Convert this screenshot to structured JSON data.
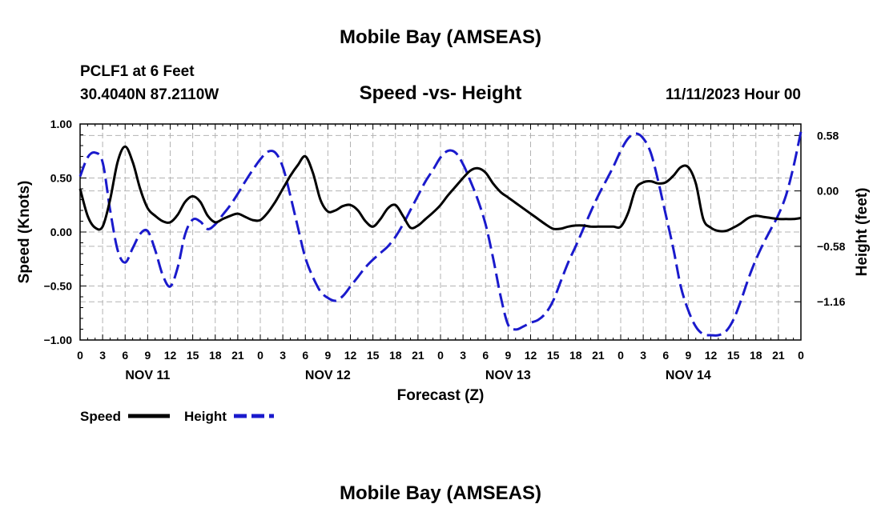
{
  "page": {
    "title": "Mobile Bay (AMSEAS)",
    "footer_title": "Mobile Bay (AMSEAS)"
  },
  "chart_data": {
    "type": "line",
    "title": "Speed -vs- Height",
    "station": "PCLF1 at 6 Feet",
    "location": "30.4040N  87.2110W",
    "date": "11/11/2023 Hour 00",
    "xlabel": "Forecast (Z)",
    "ylabel": "Speed (Knots)",
    "y2label": "Height (feet)",
    "x_hours_range": [
      0,
      96
    ],
    "ylim": [
      -1.0,
      1.0
    ],
    "y2lim": [
      -1.56,
      0.7
    ],
    "y_ticks": [
      "1.00",
      "0.50",
      "0.00",
      "−0.50",
      "−1.00"
    ],
    "y2_ticks": [
      {
        "value": 0.58,
        "label": "0.58"
      },
      {
        "value": 0.0,
        "label": "0.00"
      },
      {
        "value": -0.58,
        "label": "−0.58"
      },
      {
        "value": -1.16,
        "label": "−1.16"
      }
    ],
    "x_tick_labels": [
      "0",
      "3",
      "6",
      "9",
      "12",
      "15",
      "18",
      "21",
      "0",
      "3",
      "6",
      "9",
      "12",
      "15",
      "18",
      "21",
      "0",
      "3",
      "6",
      "9",
      "12",
      "15",
      "18",
      "21",
      "0",
      "3",
      "6",
      "9",
      "12",
      "15",
      "18",
      "21",
      "0"
    ],
    "day_labels": [
      {
        "label": "NOV 11",
        "hour": 9
      },
      {
        "label": "NOV 12",
        "hour": 33
      },
      {
        "label": "NOV 13",
        "hour": 57
      },
      {
        "label": "NOV 14",
        "hour": 81
      }
    ],
    "grid": true,
    "legend": {
      "position": "bottom-left"
    },
    "series": [
      {
        "name": "Speed",
        "axis": "left",
        "color": "#000000",
        "style": "solid",
        "points": [
          [
            0,
            0.4
          ],
          [
            1,
            0.15
          ],
          [
            2,
            0.04
          ],
          [
            3,
            0.05
          ],
          [
            4,
            0.3
          ],
          [
            5,
            0.65
          ],
          [
            6,
            0.79
          ],
          [
            7,
            0.65
          ],
          [
            8,
            0.4
          ],
          [
            9,
            0.22
          ],
          [
            10,
            0.15
          ],
          [
            11,
            0.1
          ],
          [
            12,
            0.09
          ],
          [
            13,
            0.16
          ],
          [
            14,
            0.28
          ],
          [
            15,
            0.33
          ],
          [
            16,
            0.28
          ],
          [
            17,
            0.15
          ],
          [
            18,
            0.09
          ],
          [
            19,
            0.12
          ],
          [
            20,
            0.15
          ],
          [
            21,
            0.17
          ],
          [
            22,
            0.14
          ],
          [
            23,
            0.11
          ],
          [
            24,
            0.11
          ],
          [
            25,
            0.18
          ],
          [
            26,
            0.28
          ],
          [
            27,
            0.4
          ],
          [
            28,
            0.52
          ],
          [
            29,
            0.62
          ],
          [
            30,
            0.7
          ],
          [
            31,
            0.55
          ],
          [
            32,
            0.3
          ],
          [
            33,
            0.19
          ],
          [
            34,
            0.2
          ],
          [
            35,
            0.24
          ],
          [
            36,
            0.25
          ],
          [
            37,
            0.2
          ],
          [
            38,
            0.1
          ],
          [
            39,
            0.05
          ],
          [
            40,
            0.12
          ],
          [
            41,
            0.22
          ],
          [
            42,
            0.25
          ],
          [
            43,
            0.15
          ],
          [
            44,
            0.04
          ],
          [
            45,
            0.06
          ],
          [
            46,
            0.12
          ],
          [
            47,
            0.18
          ],
          [
            48,
            0.25
          ],
          [
            49,
            0.34
          ],
          [
            50,
            0.42
          ],
          [
            51,
            0.5
          ],
          [
            52,
            0.57
          ],
          [
            53,
            0.59
          ],
          [
            54,
            0.55
          ],
          [
            55,
            0.45
          ],
          [
            56,
            0.37
          ],
          [
            57,
            0.32
          ],
          [
            58,
            0.27
          ],
          [
            59,
            0.22
          ],
          [
            60,
            0.17
          ],
          [
            61,
            0.12
          ],
          [
            62,
            0.07
          ],
          [
            63,
            0.03
          ],
          [
            64,
            0.03
          ],
          [
            65,
            0.05
          ],
          [
            66,
            0.06
          ],
          [
            67,
            0.06
          ],
          [
            68,
            0.05
          ],
          [
            69,
            0.05
          ],
          [
            70,
            0.05
          ],
          [
            71,
            0.05
          ],
          [
            72,
            0.05
          ],
          [
            73,
            0.18
          ],
          [
            74,
            0.4
          ],
          [
            75,
            0.46
          ],
          [
            76,
            0.47
          ],
          [
            77,
            0.45
          ],
          [
            78,
            0.46
          ],
          [
            79,
            0.52
          ],
          [
            80,
            0.6
          ],
          [
            81,
            0.6
          ],
          [
            82,
            0.45
          ],
          [
            83,
            0.12
          ],
          [
            84,
            0.04
          ],
          [
            85,
            0.01
          ],
          [
            86,
            0.01
          ],
          [
            87,
            0.04
          ],
          [
            88,
            0.08
          ],
          [
            89,
            0.13
          ],
          [
            90,
            0.15
          ],
          [
            91,
            0.14
          ],
          [
            92,
            0.13
          ],
          [
            93,
            0.12
          ],
          [
            94,
            0.12
          ],
          [
            95,
            0.12
          ],
          [
            96,
            0.13
          ]
        ]
      },
      {
        "name": "Height",
        "axis": "right",
        "color": "#1a1acc",
        "style": "dashed",
        "points": [
          [
            0,
            0.15
          ],
          [
            1,
            0.35
          ],
          [
            2,
            0.4
          ],
          [
            3,
            0.3
          ],
          [
            4,
            -0.2
          ],
          [
            5,
            -0.62
          ],
          [
            6,
            -0.75
          ],
          [
            7,
            -0.6
          ],
          [
            8,
            -0.45
          ],
          [
            9,
            -0.42
          ],
          [
            10,
            -0.62
          ],
          [
            11,
            -0.88
          ],
          [
            12,
            -1.0
          ],
          [
            13,
            -0.8
          ],
          [
            14,
            -0.45
          ],
          [
            15,
            -0.3
          ],
          [
            16,
            -0.32
          ],
          [
            17,
            -0.4
          ],
          [
            18,
            -0.35
          ],
          [
            19,
            -0.25
          ],
          [
            20,
            -0.15
          ],
          [
            21,
            -0.03
          ],
          [
            22,
            0.1
          ],
          [
            23,
            0.22
          ],
          [
            24,
            0.33
          ],
          [
            25,
            0.41
          ],
          [
            26,
            0.4
          ],
          [
            27,
            0.25
          ],
          [
            28,
            -0.05
          ],
          [
            29,
            -0.38
          ],
          [
            30,
            -0.7
          ],
          [
            31,
            -0.9
          ],
          [
            32,
            -1.05
          ],
          [
            33,
            -1.12
          ],
          [
            34,
            -1.15
          ],
          [
            35,
            -1.1
          ],
          [
            36,
            -1.0
          ],
          [
            37,
            -0.9
          ],
          [
            38,
            -0.8
          ],
          [
            39,
            -0.72
          ],
          [
            40,
            -0.65
          ],
          [
            41,
            -0.58
          ],
          [
            42,
            -0.48
          ],
          [
            43,
            -0.35
          ],
          [
            44,
            -0.2
          ],
          [
            45,
            -0.05
          ],
          [
            46,
            0.1
          ],
          [
            47,
            0.22
          ],
          [
            48,
            0.35
          ],
          [
            49,
            0.42
          ],
          [
            50,
            0.4
          ],
          [
            51,
            0.28
          ],
          [
            52,
            0.1
          ],
          [
            53,
            -0.1
          ],
          [
            54,
            -0.35
          ],
          [
            55,
            -0.7
          ],
          [
            56,
            -1.1
          ],
          [
            57,
            -1.4
          ],
          [
            58,
            -1.45
          ],
          [
            59,
            -1.42
          ],
          [
            60,
            -1.38
          ],
          [
            61,
            -1.35
          ],
          [
            62,
            -1.28
          ],
          [
            63,
            -1.15
          ],
          [
            64,
            -0.95
          ],
          [
            65,
            -0.75
          ],
          [
            66,
            -0.58
          ],
          [
            67,
            -0.4
          ],
          [
            68,
            -0.22
          ],
          [
            69,
            -0.05
          ],
          [
            70,
            0.1
          ],
          [
            71,
            0.25
          ],
          [
            72,
            0.42
          ],
          [
            73,
            0.55
          ],
          [
            74,
            0.6
          ],
          [
            75,
            0.55
          ],
          [
            76,
            0.4
          ],
          [
            77,
            0.1
          ],
          [
            78,
            -0.25
          ],
          [
            79,
            -0.6
          ],
          [
            80,
            -1.0
          ],
          [
            81,
            -1.25
          ],
          [
            82,
            -1.42
          ],
          [
            83,
            -1.5
          ],
          [
            84,
            -1.51
          ],
          [
            85,
            -1.51
          ],
          [
            86,
            -1.47
          ],
          [
            87,
            -1.35
          ],
          [
            88,
            -1.15
          ],
          [
            89,
            -0.92
          ],
          [
            90,
            -0.72
          ],
          [
            91,
            -0.55
          ],
          [
            92,
            -0.4
          ],
          [
            93,
            -0.25
          ],
          [
            94,
            -0.05
          ],
          [
            95,
            0.25
          ],
          [
            96,
            0.62
          ]
        ]
      }
    ]
  }
}
